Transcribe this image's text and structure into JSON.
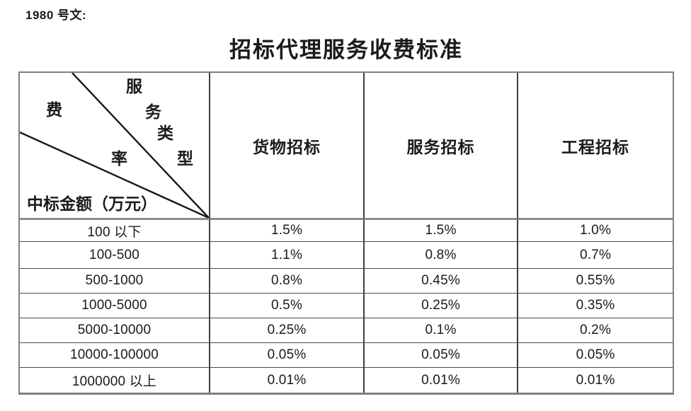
{
  "doc_label": "1980 号文:",
  "title": "招标代理服务收费标准",
  "table": {
    "corner": {
      "fee_rate_chars": [
        "费",
        "率"
      ],
      "service_type_chars": [
        "服",
        "务",
        "类",
        "型"
      ],
      "amount_label": "中标金额（万元）"
    },
    "columns": [
      "货物招标",
      "服务招标",
      "工程招标"
    ],
    "rows": [
      {
        "range": "100 以下",
        "values": [
          "1.5%",
          "1.5%",
          "1.0%"
        ]
      },
      {
        "range": "100-500",
        "values": [
          "1.1%",
          "0.8%",
          "0.7%"
        ]
      },
      {
        "range": "500-1000",
        "values": [
          "0.8%",
          "0.45%",
          "0.55%"
        ]
      },
      {
        "range": "1000-5000",
        "values": [
          "0.5%",
          "0.25%",
          "0.35%"
        ]
      },
      {
        "range": "5000-10000",
        "values": [
          "0.25%",
          "0.1%",
          "0.2%"
        ]
      },
      {
        "range": "10000-100000",
        "values": [
          "0.05%",
          "0.05%",
          "0.05%"
        ]
      },
      {
        "range": "1000000 以上",
        "values": [
          "0.01%",
          "0.01%",
          "0.01%"
        ]
      }
    ]
  },
  "colors": {
    "outer_border": "#808080",
    "inner_vertical_border": "#3f3f3f",
    "inner_horizontal_border": "#4a4a4a",
    "header_separator": "#8c8c8c",
    "text": "#1a1a1a",
    "background": "#ffffff"
  }
}
